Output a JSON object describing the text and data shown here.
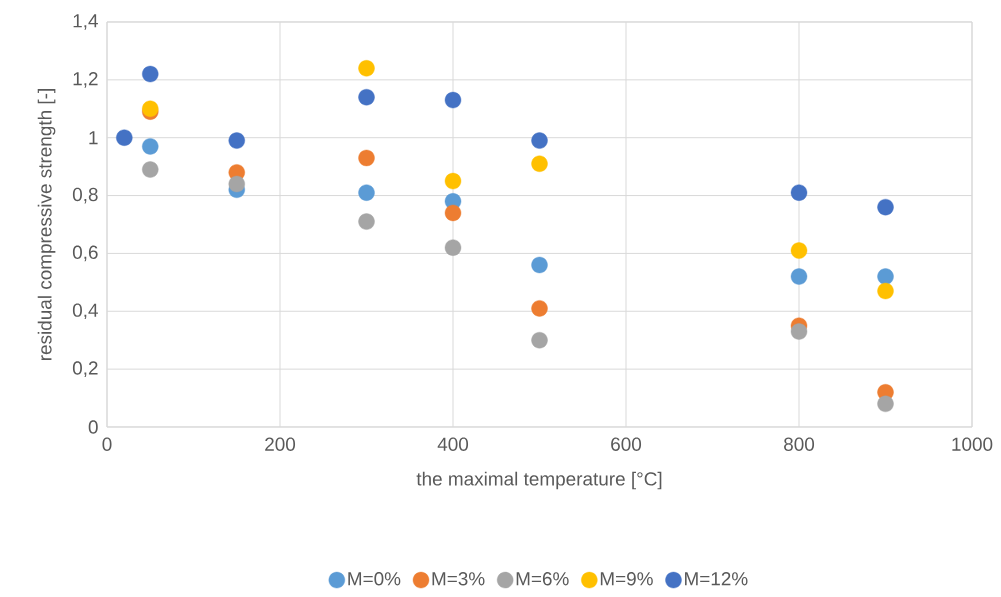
{
  "chart_data": {
    "type": "scatter",
    "xlabel": "the maximal temperature [°C]",
    "ylabel": "residual  compressive strength [-]",
    "xlim": [
      0,
      1000
    ],
    "xticks": [
      0,
      200,
      400,
      600,
      800,
      1000
    ],
    "ylim": [
      0,
      1.4
    ],
    "yticks": [
      0,
      {
        "value": 0.2,
        "label": "0,2"
      },
      {
        "value": 0.4,
        "label": "0,4"
      },
      {
        "value": 0.6,
        "label": "0,6"
      },
      {
        "value": 0.8,
        "label": "0,8"
      },
      1,
      {
        "value": 1.2,
        "label": "1,2"
      },
      {
        "value": 1.4,
        "label": "1,4"
      }
    ],
    "grid": true,
    "legend": "bottom",
    "marker": "circle",
    "series": [
      {
        "name": "M=0%",
        "color": "#5b9bd5",
        "x": [
          50,
          150,
          300,
          400,
          500,
          800,
          900
        ],
        "values": [
          0.97,
          0.82,
          0.81,
          0.78,
          0.56,
          0.52,
          0.52
        ]
      },
      {
        "name": "M=3%",
        "color": "#ed7d31",
        "x": [
          50,
          150,
          300,
          400,
          500,
          800,
          900
        ],
        "values": [
          1.09,
          0.88,
          0.93,
          0.74,
          0.41,
          0.35,
          0.12
        ]
      },
      {
        "name": "M=6%",
        "color": "#a5a5a5",
        "x": [
          50,
          150,
          300,
          400,
          500,
          800,
          900
        ],
        "values": [
          0.89,
          0.84,
          0.71,
          0.62,
          0.3,
          0.33,
          0.08
        ]
      },
      {
        "name": "M=9%",
        "color": "#ffc000",
        "x": [
          50,
          300,
          400,
          500,
          800,
          900
        ],
        "values": [
          1.1,
          1.24,
          0.85,
          0.91,
          0.61,
          0.47
        ]
      },
      {
        "name": "M=12%",
        "color": "#4472c4",
        "x": [
          20,
          50,
          150,
          300,
          400,
          500,
          800,
          900
        ],
        "values": [
          1.0,
          1.22,
          0.99,
          1.14,
          1.13,
          0.99,
          0.81,
          0.76
        ]
      }
    ]
  }
}
